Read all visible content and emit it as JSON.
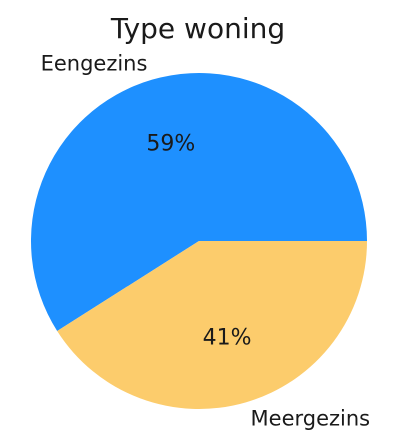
{
  "chart_data": {
    "type": "pie",
    "title": "Type woning",
    "slices": [
      {
        "label": "Eengezins",
        "value": 59,
        "pct_label": "59%",
        "color": "#1e90ff"
      },
      {
        "label": "Meergezins",
        "value": 41,
        "pct_label": "41%",
        "color": "#fccc6c"
      }
    ],
    "start_angle": 0,
    "direction": "counterclockwise",
    "legend": "none"
  }
}
